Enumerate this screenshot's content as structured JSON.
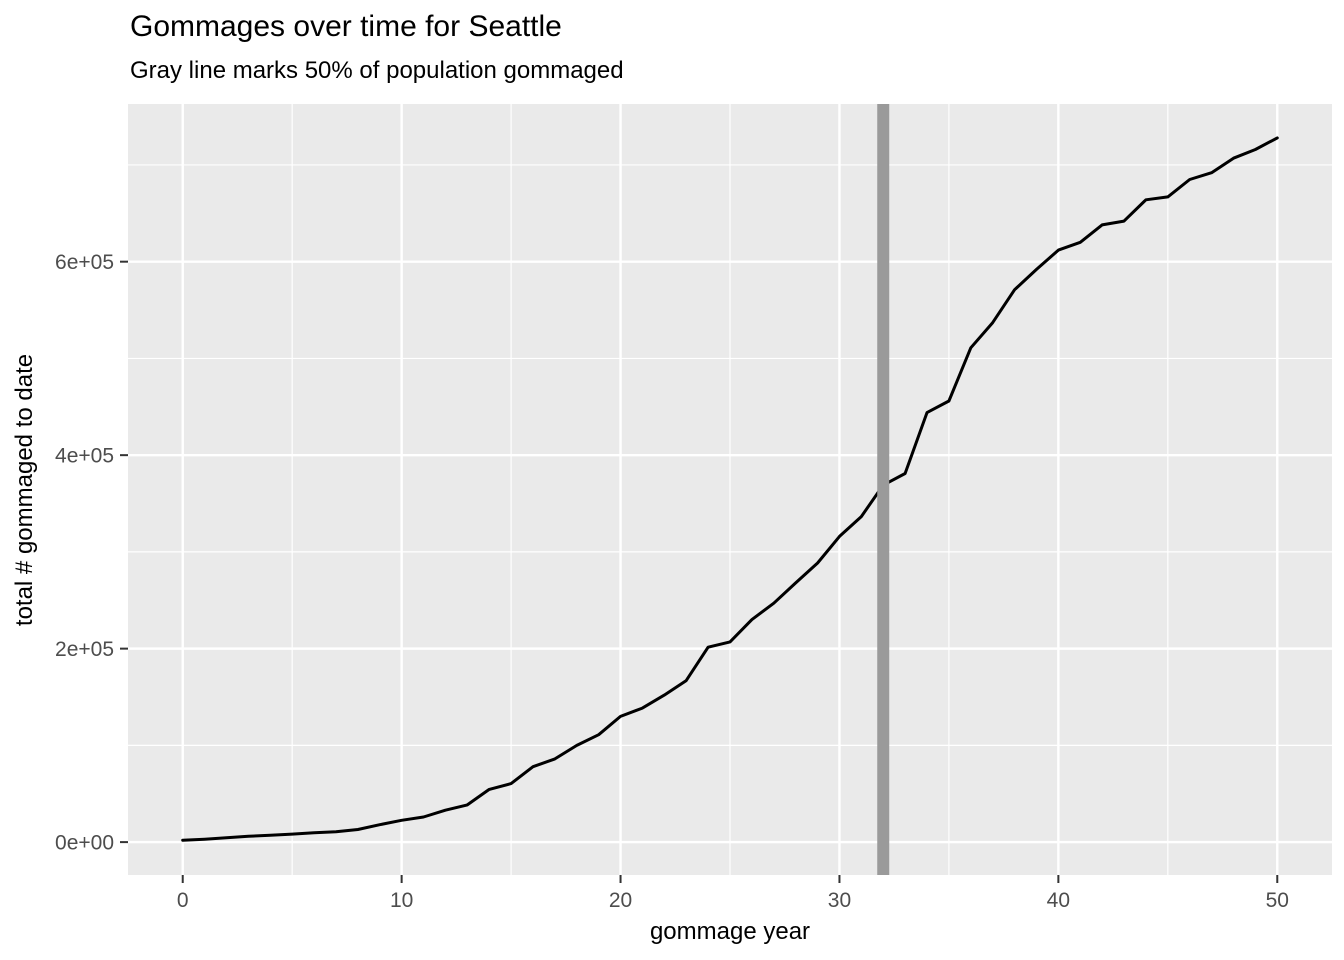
{
  "title": "Gommages over time for Seattle",
  "subtitle": "Gray line marks 50% of population gommaged",
  "chart_data": {
    "type": "line",
    "title": "Gommages over time for Seattle",
    "subtitle": "Gray line marks 50% of population gommaged",
    "xlabel": "gommage year",
    "ylabel": "total # gommaged to date",
    "xlim": [
      -2.5,
      52.5
    ],
    "ylim": [
      -34000,
      763000
    ],
    "grid": "major-and-minor-white-on-gray-panel",
    "legend_position": "none",
    "x_major_ticks": [
      0,
      10,
      20,
      30,
      40,
      50
    ],
    "x_tick_labels": [
      "0",
      "10",
      "20",
      "30",
      "40",
      "50"
    ],
    "x_minor_ticks": [
      5,
      15,
      25,
      35,
      45
    ],
    "y_major_ticks": [
      0,
      200000,
      400000,
      600000
    ],
    "y_tick_labels": [
      "0e+00",
      "2e+05",
      "4e+05",
      "6e+05"
    ],
    "y_minor_ticks": [
      100000,
      300000,
      500000,
      700000
    ],
    "vline": {
      "x": 32,
      "color": "#9A9A9A",
      "stroke_width": 12,
      "meaning": "Gray line marks 50% of population gommaged"
    },
    "series": [
      {
        "name": "total # gommaged to date",
        "color": "#000000",
        "x": [
          0,
          1,
          2,
          3,
          4,
          5,
          6,
          7,
          8,
          9,
          10,
          11,
          12,
          13,
          14,
          15,
          16,
          17,
          18,
          19,
          20,
          21,
          22,
          23,
          24,
          25,
          26,
          27,
          28,
          29,
          30,
          31,
          32,
          33,
          34,
          35,
          36,
          37,
          38,
          39,
          40,
          41,
          42,
          43,
          44,
          45,
          46,
          47,
          48,
          49,
          50
        ],
        "y": [
          2000,
          3000,
          4500,
          6000,
          7000,
          8300,
          9700,
          10700,
          13000,
          18000,
          22500,
          26000,
          33000,
          38500,
          54500,
          60500,
          78000,
          86000,
          100000,
          111000,
          130000,
          138500,
          152000,
          167000,
          201500,
          207000,
          230000,
          247000,
          268000,
          288500,
          316000,
          336500,
          369000,
          381000,
          444000,
          456000,
          511000,
          537000,
          571000,
          592000,
          612000,
          620000,
          638000,
          642000,
          664000,
          667000,
          685000,
          692000,
          707000,
          716000,
          728000
        ]
      }
    ]
  },
  "colors": {
    "figure_background": "#FFFFFF",
    "panel_background": "#EAEAEA",
    "grid_major": "#FFFFFF",
    "grid_minor": "#FFFFFF",
    "data_line": "#000000",
    "vline": "#9A9A9A",
    "tick_label_text": "#4D4D4D",
    "axis_title_text": "#000000",
    "tick_mark": "#333333"
  }
}
